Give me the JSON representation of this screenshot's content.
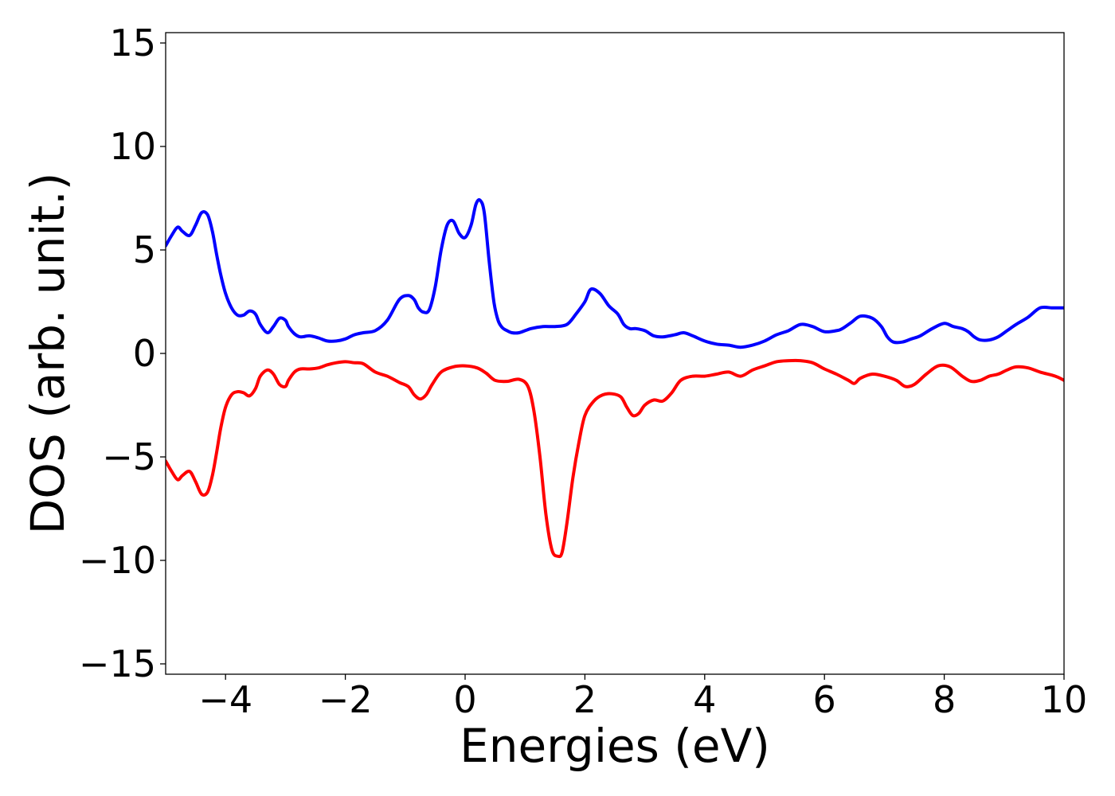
{
  "chart_data": {
    "type": "line",
    "title": "",
    "xlabel": "Energies (eV)",
    "ylabel": "DOS (arb. unit.)",
    "xlim": [
      -5,
      10
    ],
    "ylim": [
      -15.5,
      15.5
    ],
    "xticks": [
      -4,
      -2,
      0,
      2,
      4,
      6,
      8,
      10
    ],
    "xtick_labels": [
      "−4",
      "−2",
      "0",
      "2",
      "4",
      "6",
      "8",
      "10"
    ],
    "yticks": [
      -15,
      -10,
      -5,
      0,
      5,
      10,
      15
    ],
    "ytick_labels": [
      "−15",
      "−10",
      "−5",
      "0",
      "5",
      "10",
      "15"
    ],
    "grid": false,
    "legend": "none",
    "series": [
      {
        "color": "#0000ff",
        "x": [
          -5.0,
          -4.9,
          -4.8,
          -4.72,
          -4.6,
          -4.5,
          -4.4,
          -4.3,
          -4.22,
          -4.15,
          -4.08,
          -4.0,
          -3.9,
          -3.8,
          -3.7,
          -3.6,
          -3.5,
          -3.42,
          -3.3,
          -3.2,
          -3.1,
          -3.0,
          -2.95,
          -2.85,
          -2.75,
          -2.6,
          -2.45,
          -2.3,
          -2.15,
          -2.0,
          -1.85,
          -1.7,
          -1.5,
          -1.3,
          -1.1,
          -0.95,
          -0.85,
          -0.78,
          -0.7,
          -0.6,
          -0.5,
          -0.4,
          -0.3,
          -0.2,
          -0.1,
          0.0,
          0.1,
          0.18,
          0.25,
          0.32,
          0.4,
          0.48,
          0.55,
          0.62,
          0.7,
          0.78,
          0.9,
          1.1,
          1.3,
          1.5,
          1.7,
          1.85,
          2.0,
          2.1,
          2.25,
          2.4,
          2.55,
          2.65,
          2.75,
          2.85,
          3.0,
          3.15,
          3.3,
          3.5,
          3.65,
          3.8,
          4.0,
          4.2,
          4.4,
          4.6,
          4.8,
          5.0,
          5.2,
          5.4,
          5.6,
          5.8,
          6.0,
          6.2,
          6.3,
          6.45,
          6.6,
          6.8,
          6.95,
          7.05,
          7.15,
          7.3,
          7.45,
          7.6,
          7.8,
          8.0,
          8.15,
          8.3,
          8.4,
          8.5,
          8.6,
          8.75,
          8.9,
          9.05,
          9.2,
          9.4,
          9.6,
          9.8,
          9.9,
          10.0
        ],
        "y": [
          5.2,
          5.7,
          6.1,
          5.9,
          5.7,
          6.2,
          6.8,
          6.7,
          5.9,
          4.8,
          3.8,
          2.9,
          2.2,
          1.85,
          1.85,
          2.05,
          1.9,
          1.4,
          1.0,
          1.3,
          1.7,
          1.6,
          1.3,
          0.95,
          0.8,
          0.85,
          0.75,
          0.6,
          0.6,
          0.7,
          0.9,
          1.0,
          1.1,
          1.6,
          2.6,
          2.8,
          2.6,
          2.2,
          2.0,
          2.1,
          3.2,
          5.0,
          6.2,
          6.4,
          5.8,
          5.6,
          6.2,
          7.2,
          7.4,
          6.8,
          4.5,
          2.5,
          1.6,
          1.25,
          1.1,
          1.0,
          1.0,
          1.2,
          1.3,
          1.3,
          1.4,
          1.9,
          2.5,
          3.1,
          2.9,
          2.3,
          1.9,
          1.4,
          1.2,
          1.2,
          1.1,
          0.85,
          0.8,
          0.9,
          1.0,
          0.85,
          0.6,
          0.45,
          0.4,
          0.3,
          0.4,
          0.6,
          0.9,
          1.1,
          1.4,
          1.3,
          1.05,
          1.1,
          1.2,
          1.5,
          1.8,
          1.7,
          1.3,
          0.8,
          0.55,
          0.55,
          0.7,
          0.85,
          1.2,
          1.45,
          1.3,
          1.2,
          1.05,
          0.8,
          0.65,
          0.65,
          0.8,
          1.1,
          1.4,
          1.75,
          2.2,
          2.2,
          2.2,
          2.2
        ]
      },
      {
        "color": "#ff0000",
        "x": [
          -5.0,
          -4.9,
          -4.8,
          -4.72,
          -4.6,
          -4.5,
          -4.4,
          -4.3,
          -4.22,
          -4.15,
          -4.08,
          -4.0,
          -3.9,
          -3.8,
          -3.7,
          -3.6,
          -3.5,
          -3.42,
          -3.3,
          -3.2,
          -3.1,
          -3.0,
          -2.95,
          -2.85,
          -2.75,
          -2.6,
          -2.45,
          -2.3,
          -2.15,
          -2.0,
          -1.85,
          -1.7,
          -1.5,
          -1.3,
          -1.1,
          -0.95,
          -0.85,
          -0.75,
          -0.65,
          -0.55,
          -0.4,
          -0.2,
          0.0,
          0.2,
          0.35,
          0.5,
          0.7,
          0.9,
          1.05,
          1.15,
          1.25,
          1.35,
          1.45,
          1.55,
          1.62,
          1.7,
          1.8,
          1.9,
          2.0,
          2.15,
          2.3,
          2.45,
          2.6,
          2.7,
          2.8,
          2.9,
          3.0,
          3.15,
          3.3,
          3.45,
          3.6,
          3.8,
          4.0,
          4.2,
          4.4,
          4.6,
          4.8,
          5.0,
          5.2,
          5.4,
          5.6,
          5.8,
          6.0,
          6.2,
          6.4,
          6.5,
          6.6,
          6.8,
          7.0,
          7.2,
          7.35,
          7.5,
          7.7,
          7.9,
          8.1,
          8.3,
          8.45,
          8.6,
          8.75,
          8.9,
          9.05,
          9.2,
          9.4,
          9.6,
          9.8,
          9.9,
          10.0
        ],
        "y": [
          -5.2,
          -5.7,
          -6.1,
          -5.9,
          -5.7,
          -6.2,
          -6.8,
          -6.7,
          -5.9,
          -4.8,
          -3.6,
          -2.6,
          -2.0,
          -1.85,
          -1.9,
          -2.05,
          -1.7,
          -1.1,
          -0.8,
          -1.0,
          -1.5,
          -1.6,
          -1.3,
          -0.9,
          -0.75,
          -0.75,
          -0.7,
          -0.55,
          -0.45,
          -0.4,
          -0.45,
          -0.5,
          -0.9,
          -1.1,
          -1.4,
          -1.6,
          -2.0,
          -2.2,
          -2.0,
          -1.5,
          -0.9,
          -0.65,
          -0.6,
          -0.7,
          -0.95,
          -1.3,
          -1.35,
          -1.25,
          -1.6,
          -2.8,
          -5.0,
          -7.8,
          -9.5,
          -9.8,
          -9.6,
          -8.2,
          -6.0,
          -4.3,
          -3.0,
          -2.3,
          -2.0,
          -1.95,
          -2.1,
          -2.6,
          -3.0,
          -2.9,
          -2.5,
          -2.25,
          -2.3,
          -1.9,
          -1.3,
          -1.1,
          -1.1,
          -1.0,
          -0.9,
          -1.1,
          -0.8,
          -0.6,
          -0.4,
          -0.35,
          -0.35,
          -0.45,
          -0.75,
          -1.0,
          -1.3,
          -1.45,
          -1.2,
          -1.0,
          -1.1,
          -1.3,
          -1.6,
          -1.5,
          -1.0,
          -0.6,
          -0.65,
          -1.1,
          -1.35,
          -1.3,
          -1.1,
          -1.0,
          -0.8,
          -0.65,
          -0.7,
          -0.9,
          -1.05,
          -1.15,
          -1.3
        ]
      }
    ]
  }
}
